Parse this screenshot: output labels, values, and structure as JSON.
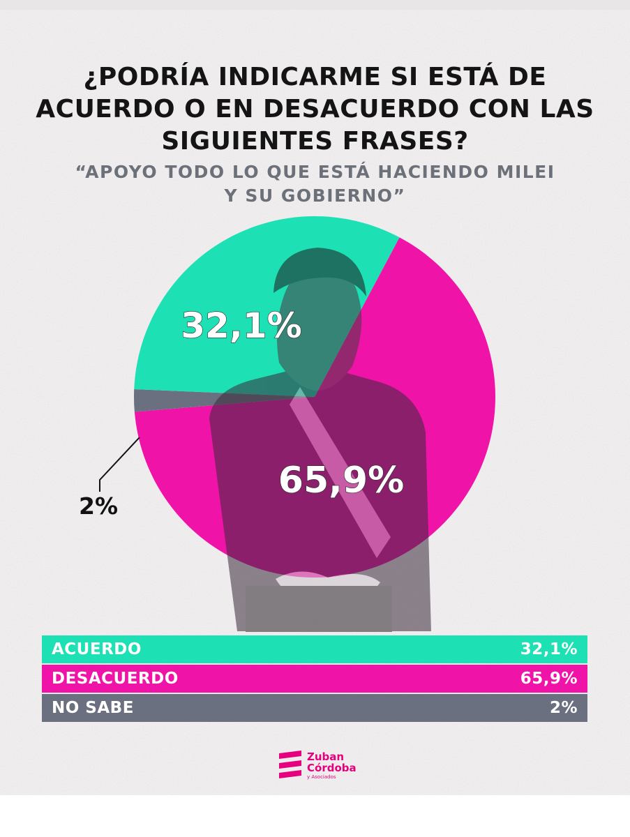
{
  "title": "¿PODRÍA INDICARME SI ESTÁ DE ACUERDO O EN DESACUERDO CON LAS SIGUIENTES FRASES?",
  "subtitle_line1": "“APOYO TODO LO QUE ESTÁ HACIENDO MILEI",
  "subtitle_line2": "Y SU GOBIERNO”",
  "chart_data": {
    "type": "pie",
    "title": "¿PODRÍA INDICARME SI ESTÁ DE ACUERDO O EN DESACUERDO CON LAS SIGUIENTES FRASES?",
    "subtitle": "“APOYO TODO LO QUE ESTÁ HACIENDO MILEI Y SU GOBIERNO”",
    "slices": [
      {
        "name": "ACUERDO",
        "value": 32.1,
        "label": "32,1%",
        "color": "#1de0b4"
      },
      {
        "name": "DESACUERDO",
        "value": 65.9,
        "label": "65,9%",
        "color": "#f013a8"
      },
      {
        "name": "NO SABE",
        "value": 2,
        "label": "2%",
        "color": "#6b7080"
      }
    ],
    "legend": {
      "placement": "bottom",
      "rows": [
        {
          "label": "ACUERDO",
          "value": "32,1%",
          "color": "#1de0b4"
        },
        {
          "label": "DESACUERDO",
          "value": "65,9%",
          "color": "#f013a8"
        },
        {
          "label": "NO SABE",
          "value": "2%",
          "color": "#6b7080"
        }
      ]
    }
  },
  "logo": {
    "line1": "Zuban",
    "line2": "Córdoba",
    "line3": "y Asociados",
    "color": "#e6007e"
  }
}
